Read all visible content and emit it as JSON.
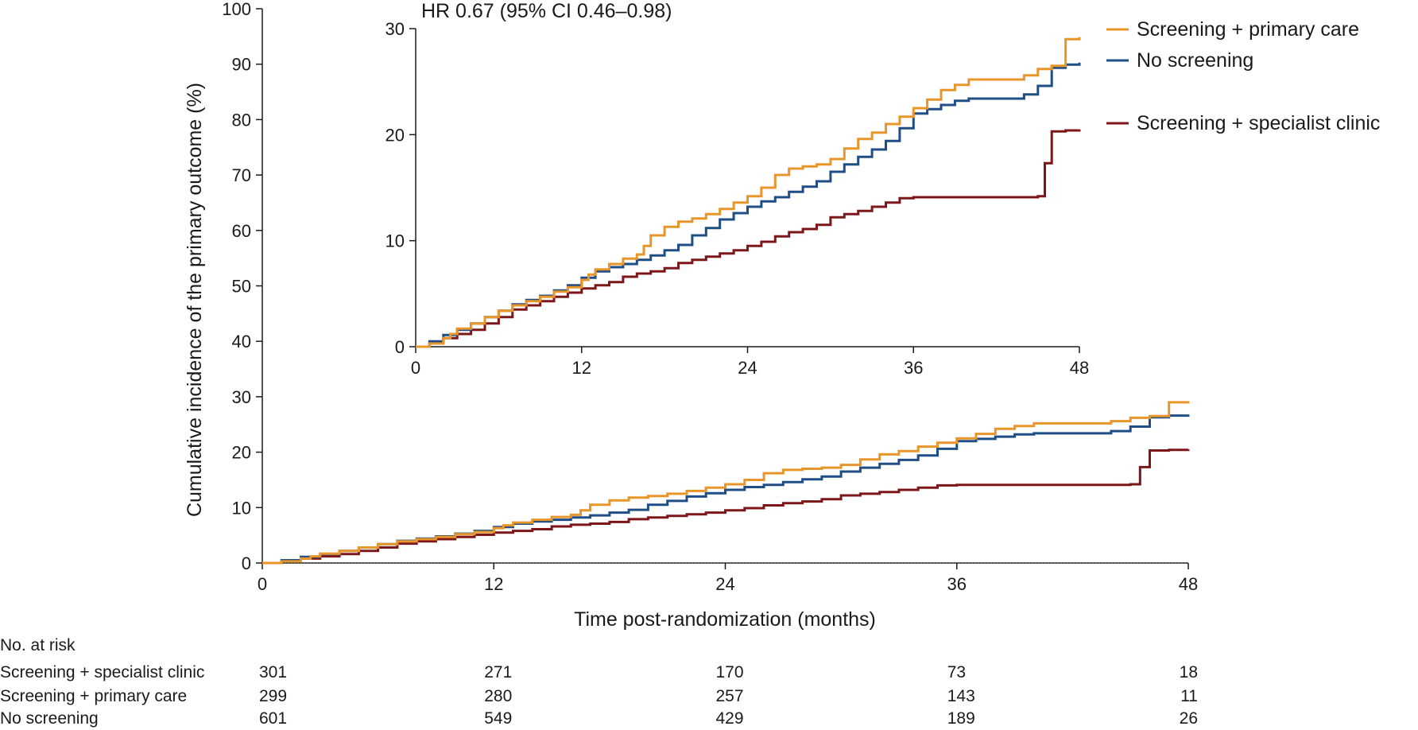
{
  "chart_data": [
    {
      "type": "line",
      "id": "main",
      "title": "",
      "xlabel": "Time post-randomization (months)",
      "ylabel": "Cumulative incidence of the primary outcome (%)",
      "xlim": [
        0,
        48
      ],
      "ylim": [
        0,
        100
      ],
      "xticks": [
        0,
        12,
        24,
        36,
        48
      ],
      "yticks": [
        0,
        10,
        20,
        30,
        40,
        50,
        60,
        70,
        80,
        90,
        100
      ],
      "legend_position": "top-right",
      "series": [
        {
          "name": "Screening + primary care",
          "color": "#e8962a",
          "x": [
            0,
            1,
            2,
            2.5,
            3,
            4,
            5,
            6,
            7,
            8,
            9,
            10,
            11,
            12,
            12.5,
            13,
            14,
            15,
            16,
            16.5,
            17,
            18,
            19,
            20,
            21,
            22,
            23,
            24,
            25,
            26,
            27,
            28,
            29,
            30,
            31,
            32,
            33,
            34,
            35,
            36,
            37,
            38,
            39,
            40,
            41,
            42,
            43,
            44,
            45,
            46,
            47,
            48
          ],
          "y": [
            0,
            0.3,
            0.8,
            1.2,
            1.7,
            2.2,
            2.8,
            3.4,
            3.9,
            4.3,
            4.7,
            5.2,
            5.6,
            6.3,
            6.8,
            7.3,
            7.8,
            8.3,
            8.7,
            9.5,
            10.5,
            11.3,
            11.8,
            12.1,
            12.5,
            13,
            13.6,
            14.2,
            15,
            16.2,
            16.8,
            17,
            17.2,
            17.7,
            18.7,
            19.6,
            20.2,
            21,
            21.7,
            22.5,
            23.3,
            24.2,
            24.7,
            25.2,
            25.2,
            25.2,
            25.2,
            25.6,
            26.2,
            26.5,
            29,
            29.2
          ]
        },
        {
          "name": "No screening",
          "color": "#1f4e86",
          "x": [
            0,
            1,
            2,
            3,
            4,
            5,
            6,
            7,
            8,
            9,
            10,
            11,
            12,
            13,
            14,
            15,
            16,
            17,
            18,
            19,
            20,
            21,
            22,
            23,
            24,
            25,
            26,
            27,
            28,
            29,
            30,
            31,
            32,
            33,
            34,
            35,
            36,
            37,
            38,
            39,
            40,
            41,
            42,
            43,
            44,
            45,
            46,
            47,
            48
          ],
          "y": [
            0,
            0.5,
            1.1,
            1.6,
            2.2,
            2.8,
            3.4,
            4,
            4.4,
            4.8,
            5.3,
            5.8,
            6.5,
            7.1,
            7.5,
            7.8,
            8.2,
            8.6,
            9.1,
            9.6,
            10.5,
            11.2,
            12,
            12.6,
            13.2,
            13.7,
            14.1,
            14.6,
            15.1,
            15.6,
            16.5,
            17.2,
            17.9,
            18.6,
            19.4,
            20.6,
            22,
            22.4,
            22.8,
            23.2,
            23.4,
            23.4,
            23.4,
            23.4,
            23.8,
            24.6,
            26.3,
            26.6,
            26.8
          ]
        },
        {
          "name": "Screening + specialist clinic",
          "color": "#7d1618",
          "x": [
            0,
            1,
            2,
            3,
            4,
            5,
            6,
            7,
            8,
            9,
            10,
            11,
            12,
            13,
            14,
            15,
            16,
            17,
            18,
            19,
            20,
            21,
            22,
            23,
            24,
            25,
            26,
            27,
            28,
            29,
            30,
            31,
            32,
            33,
            34,
            35,
            36,
            37,
            38,
            39,
            40,
            41,
            42,
            43,
            44,
            45,
            45.5,
            46,
            47,
            48
          ],
          "y": [
            0,
            0.4,
            0.8,
            1.2,
            1.6,
            2.2,
            2.8,
            3.5,
            3.9,
            4.3,
            4.7,
            5.1,
            5.5,
            5.8,
            6.1,
            6.6,
            6.9,
            7.1,
            7.4,
            7.9,
            8.2,
            8.5,
            8.8,
            9.1,
            9.5,
            9.9,
            10.4,
            10.8,
            11.1,
            11.5,
            12.2,
            12.5,
            12.8,
            13.2,
            13.6,
            14,
            14.1,
            14.1,
            14.1,
            14.1,
            14.1,
            14.1,
            14.1,
            14.1,
            14.1,
            14.2,
            17.3,
            20.3,
            20.4,
            20.5
          ]
        }
      ]
    },
    {
      "type": "line",
      "id": "inset",
      "title": "HR 0.67 (95% CI 0.46–0.98)",
      "xlim": [
        0,
        48
      ],
      "ylim": [
        0,
        30
      ],
      "xticks": [
        0,
        12,
        24,
        36,
        48
      ],
      "yticks": [
        0,
        10,
        20,
        30
      ],
      "series_ref": "same series as main chart (zoomed y-axis)"
    }
  ],
  "legend": [
    {
      "label": "Screening + primary care",
      "color": "#e8962a"
    },
    {
      "label": "No screening",
      "color": "#1f4e86"
    },
    {
      "label": "Screening + specialist clinic",
      "color": "#7d1618"
    }
  ],
  "risk_table": {
    "title": "No. at risk",
    "times": [
      0,
      12,
      24,
      36,
      48
    ],
    "rows": [
      {
        "label": "Screening + specialist clinic",
        "values": [
          "301",
          "271",
          "170",
          "73",
          "18"
        ]
      },
      {
        "label": "Screening + primary care",
        "values": [
          "299",
          "280",
          "257",
          "143",
          "11"
        ]
      },
      {
        "label": "No screening",
        "values": [
          "601",
          "549",
          "429",
          "189",
          "26"
        ]
      }
    ]
  }
}
